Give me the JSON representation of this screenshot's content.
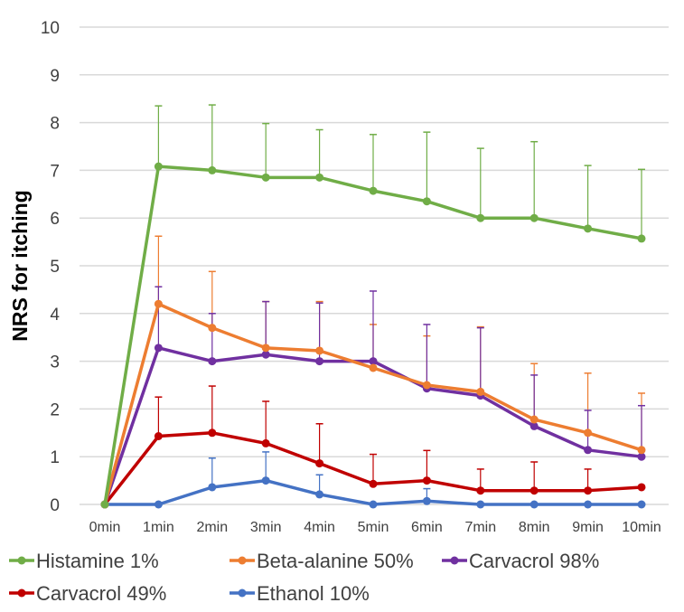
{
  "chart_data": {
    "type": "line",
    "title": "",
    "xlabel": "",
    "ylabel": "NRS for itching",
    "ylim": [
      0,
      10
    ],
    "yticks": [
      "0",
      "1",
      "2",
      "3",
      "4",
      "5",
      "6",
      "7",
      "8",
      "9",
      "10"
    ],
    "categories": [
      "0min",
      "1min",
      "2min",
      "3min",
      "4min",
      "5min",
      "6min",
      "7min",
      "8min",
      "9min",
      "10min"
    ],
    "grid": true,
    "legend_position": "bottom",
    "series": [
      {
        "name": "Histamine 1%",
        "color": "#70ad47",
        "values": [
          0,
          7.08,
          7.0,
          6.85,
          6.85,
          6.57,
          6.35,
          6.0,
          6.0,
          5.78,
          5.57
        ],
        "error_upper": [
          0,
          8.35,
          8.37,
          7.98,
          7.85,
          7.75,
          7.8,
          7.46,
          7.6,
          7.1,
          7.02
        ]
      },
      {
        "name": "Beta-alanine 50%",
        "color": "#ed7d31",
        "values": [
          0,
          4.2,
          3.7,
          3.28,
          3.22,
          2.86,
          2.5,
          2.36,
          1.78,
          1.5,
          1.14
        ],
        "error_upper": [
          0,
          5.62,
          4.88,
          4.25,
          4.25,
          3.77,
          3.53,
          3.72,
          2.95,
          2.75,
          2.33
        ]
      },
      {
        "name": "Carvacrol 98%",
        "color": "#7030a0",
        "values": [
          0,
          3.28,
          3.0,
          3.14,
          3.0,
          3.0,
          2.43,
          2.28,
          1.64,
          1.14,
          1.0
        ],
        "error_upper": [
          0,
          4.56,
          4.0,
          4.25,
          4.22,
          4.47,
          3.77,
          3.7,
          2.71,
          1.97,
          2.07
        ]
      },
      {
        "name": "Carvacrol 49%",
        "color": "#c00000",
        "values": [
          0,
          1.43,
          1.5,
          1.28,
          0.86,
          0.43,
          0.5,
          0.29,
          0.29,
          0.29,
          0.36
        ],
        "error_upper": [
          0,
          2.25,
          2.48,
          2.16,
          1.69,
          1.05,
          1.13,
          0.74,
          0.89,
          0.74,
          0.36
        ]
      },
      {
        "name": "Ethanol 10%",
        "color": "#4472c4",
        "values": [
          0,
          0,
          0.36,
          0.5,
          0.21,
          0,
          0.07,
          0,
          0,
          0,
          0
        ],
        "error_upper": [
          0,
          0,
          0.97,
          1.1,
          0.62,
          0,
          0.33,
          0,
          0,
          0,
          0
        ]
      }
    ]
  }
}
